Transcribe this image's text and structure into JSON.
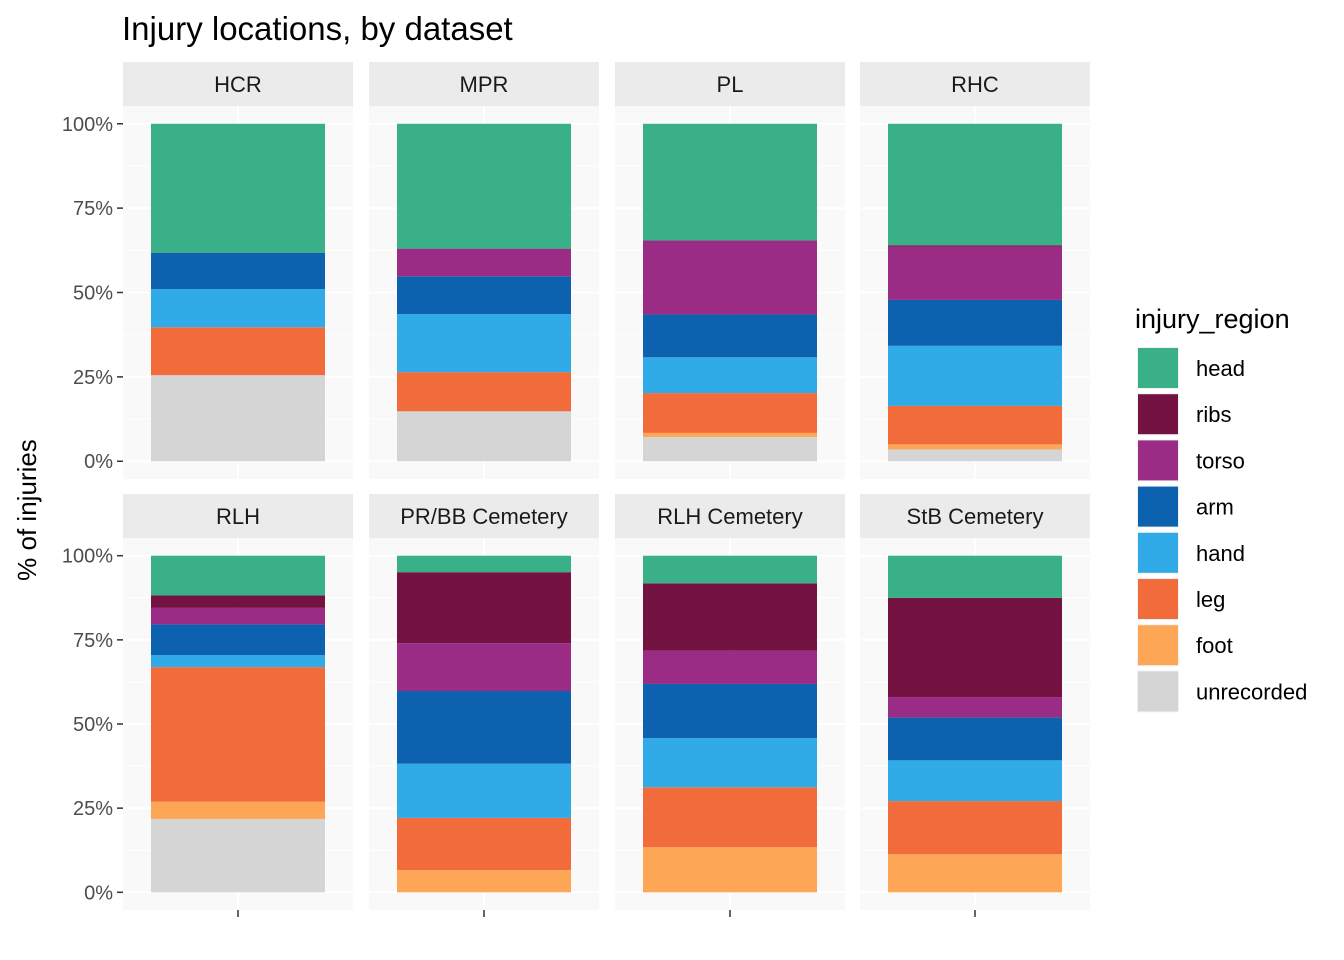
{
  "chart_data": {
    "type": "bar",
    "stacked": true,
    "normalized": true,
    "title": "Injury locations, by dataset",
    "xlabel": "",
    "ylabel": "% of injuries",
    "ylim": [
      0,
      100
    ],
    "y_ticks": [
      "0%",
      "25%",
      "50%",
      "75%",
      "100%"
    ],
    "grid": true,
    "legend": {
      "title": "injury_region",
      "position": "right",
      "entries": [
        {
          "name": "head",
          "color": "#3AB088"
        },
        {
          "name": "ribs",
          "color": "#741341"
        },
        {
          "name": "torso",
          "color": "#9A2C86"
        },
        {
          "name": "arm",
          "color": "#0C62AF"
        },
        {
          "name": "hand",
          "color": "#30ABE8"
        },
        {
          "name": "leg",
          "color": "#F26B3A"
        },
        {
          "name": "foot",
          "color": "#FDA656"
        },
        {
          "name": "unrecorded",
          "color": "#D5D5D5"
        }
      ]
    },
    "panels": [
      {
        "label": "HCR",
        "values": {
          "head": 38.2,
          "ribs": 0,
          "torso": 0,
          "arm": 10.8,
          "hand": 11.3,
          "leg": 14.2,
          "foot": 0,
          "unrecorded": 25.5
        }
      },
      {
        "label": "MPR",
        "values": {
          "head": 37.0,
          "ribs": 0,
          "torso": 8.2,
          "arm": 11.2,
          "hand": 17.2,
          "leg": 11.6,
          "foot": 0,
          "unrecorded": 14.8
        }
      },
      {
        "label": "PL",
        "values": {
          "head": 34.6,
          "ribs": 0,
          "torso": 21.9,
          "arm": 12.7,
          "hand": 10.6,
          "leg": 11.8,
          "foot": 1.2,
          "unrecorded": 7.2
        }
      },
      {
        "label": "RHC",
        "values": {
          "head": 36.0,
          "ribs": 0.4,
          "torso": 15.8,
          "arm": 13.6,
          "hand": 17.8,
          "leg": 11.4,
          "foot": 1.5,
          "unrecorded": 3.5
        }
      },
      {
        "label": "RLH",
        "values": {
          "head": 11.8,
          "ribs": 3.7,
          "torso": 4.9,
          "arm": 9.1,
          "hand": 3.6,
          "leg": 40.0,
          "foot": 5.1,
          "unrecorded": 21.8
        }
      },
      {
        "label": "PR/BB Cemetery",
        "values": {
          "head": 4.9,
          "ribs": 21.1,
          "torso": 14.2,
          "arm": 21.6,
          "hand": 16.1,
          "leg": 15.5,
          "foot": 6.6,
          "unrecorded": 0
        }
      },
      {
        "label": "RLH Cemetery",
        "values": {
          "head": 8.2,
          "ribs": 20.0,
          "torso": 9.9,
          "arm": 16.1,
          "hand": 14.6,
          "leg": 17.8,
          "foot": 13.4,
          "unrecorded": 0
        }
      },
      {
        "label": "StB Cemetery",
        "values": {
          "head": 12.5,
          "ribs": 29.5,
          "torso": 6.1,
          "arm": 12.7,
          "hand": 12.1,
          "leg": 15.8,
          "foot": 11.3,
          "unrecorded": 0
        }
      }
    ]
  }
}
